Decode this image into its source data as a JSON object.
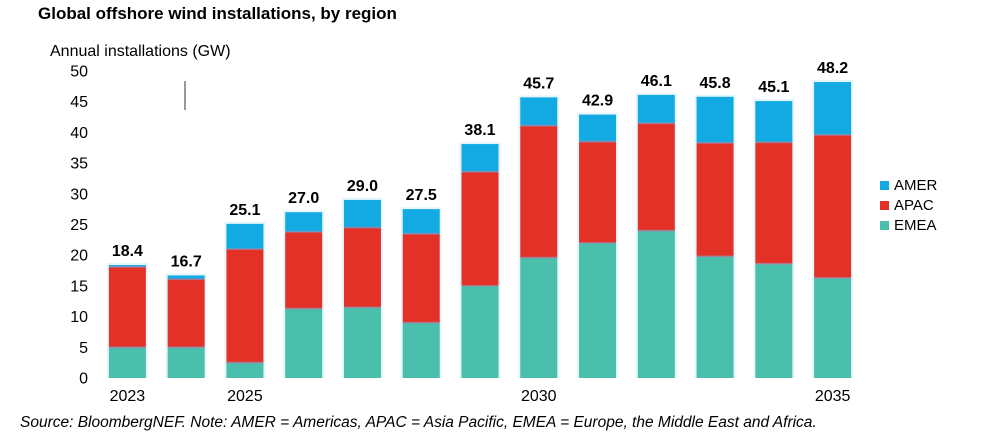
{
  "chart_data": {
    "type": "bar",
    "stacked": true,
    "title": "Global offshore wind installations, by region",
    "ylabel": "Annual installations (GW)",
    "xlabel": "",
    "source": "Source: BloombergNEF. Note: AMER = Americas, APAC = Asia Pacific, EMEA = Europe, the Middle East and Africa.",
    "ylim": [
      0,
      50
    ],
    "yticks": [
      0,
      5,
      10,
      15,
      20,
      25,
      30,
      35,
      40,
      45,
      50
    ],
    "categories": [
      "2023",
      "2024",
      "2025",
      "2026",
      "2027",
      "2028",
      "2029",
      "2030",
      "2031",
      "2032",
      "2033",
      "2034",
      "2035"
    ],
    "category_labels": [
      "2023",
      "",
      "2025",
      "",
      "",
      "",
      "",
      "2030",
      "",
      "",
      "",
      "",
      "2035"
    ],
    "totals": [
      18.4,
      16.7,
      25.1,
      27.0,
      29.0,
      27.5,
      38.1,
      45.7,
      42.9,
      46.1,
      45.8,
      45.1,
      48.2
    ],
    "total_labels": [
      "18.4",
      "16.7",
      "25.1",
      "27.0",
      "29.0",
      "27.5",
      "38.1",
      "45.7",
      "42.9",
      "46.1",
      "45.8",
      "45.1",
      "48.2"
    ],
    "series": [
      {
        "name": "EMEA",
        "color": "#49bfac",
        "values": [
          5.0,
          5.0,
          2.5,
          11.3,
          11.5,
          9.0,
          15.0,
          19.6,
          22.0,
          24.0,
          19.8,
          18.6,
          16.3
        ]
      },
      {
        "name": "APAC",
        "color": "#e33127",
        "values": [
          13.1,
          11.1,
          18.5,
          12.5,
          13.0,
          14.5,
          18.6,
          21.5,
          16.5,
          17.5,
          18.5,
          19.8,
          23.3
        ]
      },
      {
        "name": "AMER",
        "color": "#13a9e3",
        "values": [
          0.3,
          0.6,
          4.1,
          3.2,
          4.5,
          4.0,
          4.5,
          4.6,
          4.4,
          4.6,
          7.5,
          6.7,
          8.6
        ]
      }
    ],
    "legend": {
      "placement": "right",
      "order": [
        "AMER",
        "APAC",
        "EMEA"
      ]
    },
    "grid": false
  }
}
